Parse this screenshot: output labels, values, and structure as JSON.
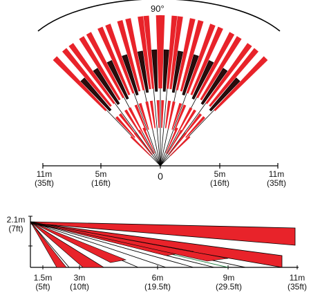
{
  "top_view": {
    "angle_label": "90°",
    "scale": [
      {
        "m": "11m",
        "ft": "(35ft)"
      },
      {
        "m": "5m",
        "ft": "(16ft)"
      },
      {
        "m": "0",
        "ft": ""
      },
      {
        "m": "5m",
        "ft": "(16ft)"
      },
      {
        "m": "11m",
        "ft": "(35ft)"
      }
    ]
  },
  "side_view": {
    "height": {
      "m": "2.1m",
      "ft": "(7ft)"
    },
    "scale": [
      {
        "m": "1.5m",
        "ft": "(5ft)"
      },
      {
        "m": "3m",
        "ft": "(10ft)"
      },
      {
        "m": "6m",
        "ft": "(19.5ft)"
      },
      {
        "m": "9m",
        "ft": "(29.5ft)"
      },
      {
        "m": "11m",
        "ft": "(35ft)"
      }
    ]
  },
  "colors": {
    "beam_red": "#e8232a",
    "beam_dark": "#2a0c0c",
    "line": "#000000",
    "green": "#1a7a3a"
  }
}
